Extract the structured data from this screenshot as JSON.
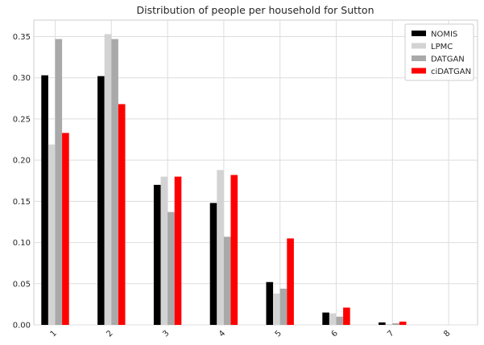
{
  "chart_data": {
    "type": "bar",
    "title": "Distribution of people per household for Sutton",
    "xlabel": "",
    "ylabel": "",
    "categories": [
      "1",
      "2",
      "3",
      "4",
      "5",
      "6",
      "7",
      "8"
    ],
    "ylim": [
      0,
      0.37
    ],
    "yticks": [
      0.0,
      0.05,
      0.1,
      0.15,
      0.2,
      0.25,
      0.3,
      0.35
    ],
    "ytick_labels": [
      "0.00",
      "0.05",
      "0.10",
      "0.15",
      "0.20",
      "0.25",
      "0.30",
      "0.35"
    ],
    "grid": true,
    "legend_position": "top-right",
    "series": [
      {
        "name": "NOMIS",
        "color": "#000000",
        "values": [
          0.303,
          0.302,
          0.17,
          0.148,
          0.052,
          0.015,
          0.003,
          0.0
        ]
      },
      {
        "name": "LPMC",
        "color": "#d3d3d3",
        "values": [
          0.219,
          0.353,
          0.18,
          0.188,
          0.038,
          0.014,
          0.001,
          0.0
        ]
      },
      {
        "name": "DATGAN",
        "color": "#a9a9a9",
        "values": [
          0.347,
          0.347,
          0.137,
          0.107,
          0.044,
          0.01,
          0.002,
          0.0
        ]
      },
      {
        "name": "ciDATGAN",
        "color": "#ff0000",
        "values": [
          0.233,
          0.268,
          0.18,
          0.182,
          0.105,
          0.021,
          0.004,
          0.0
        ]
      }
    ]
  }
}
